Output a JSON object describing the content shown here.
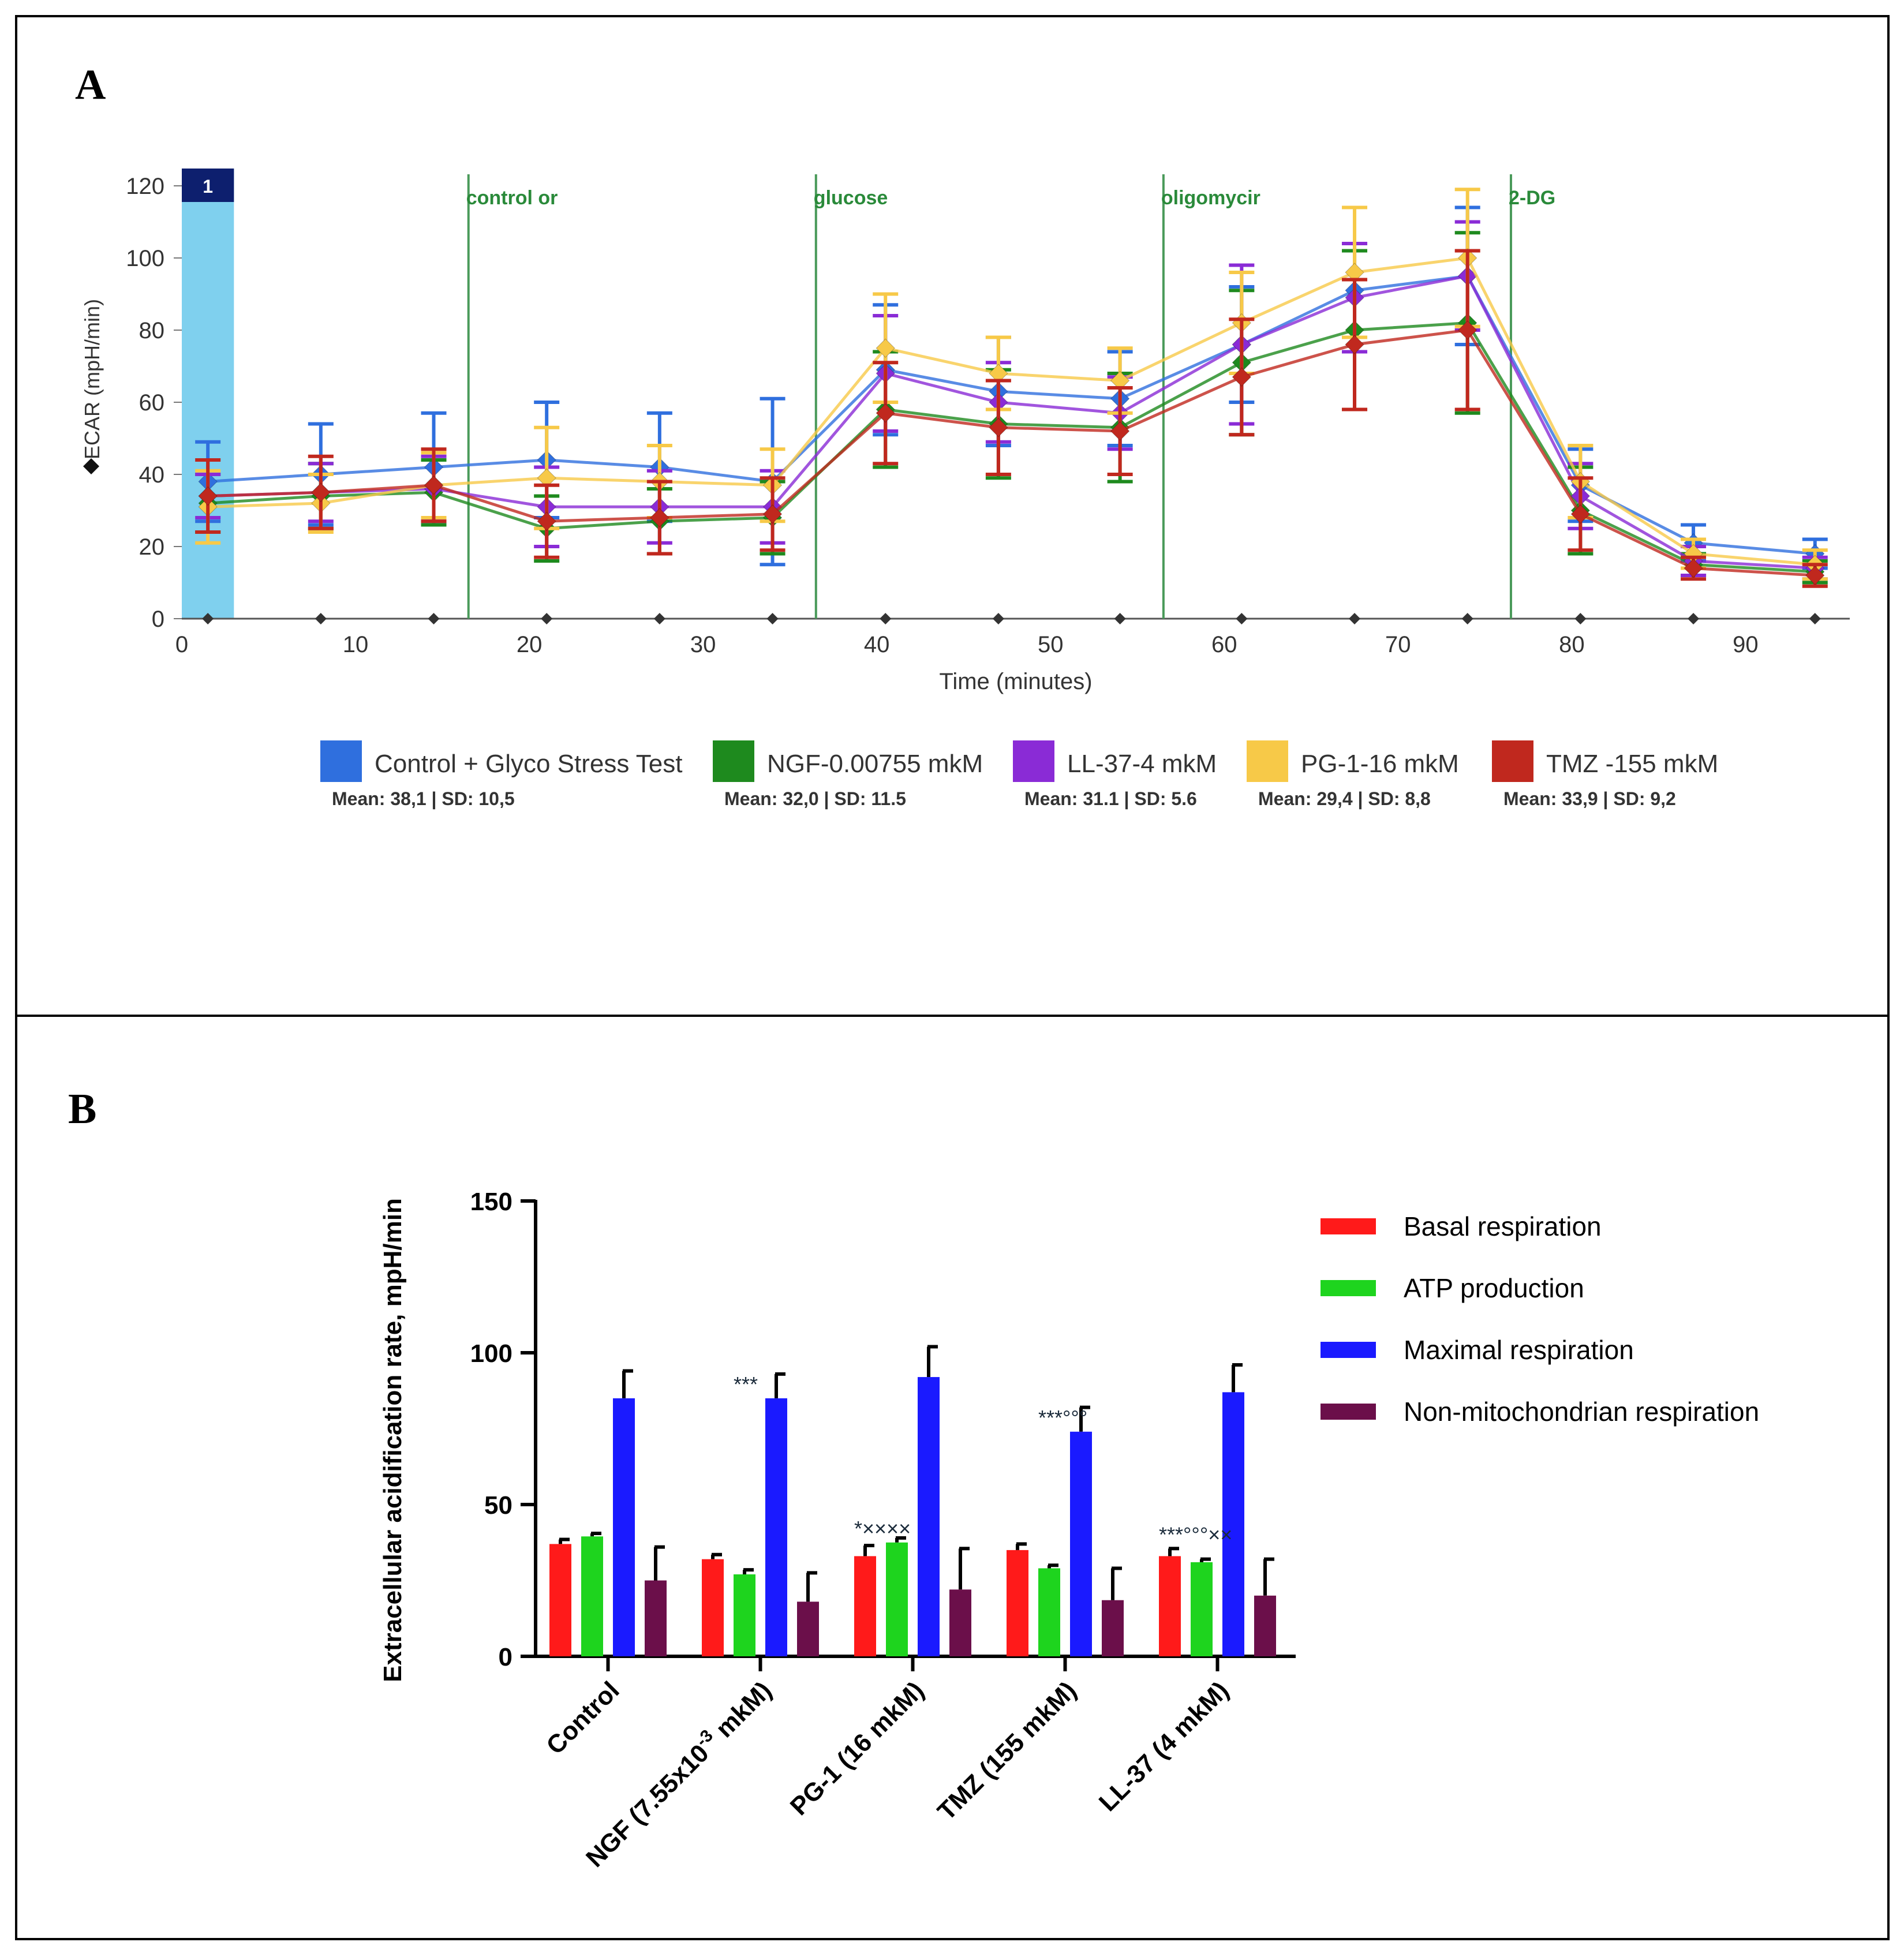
{
  "panels": {
    "a_label": "A",
    "b_label": "B"
  },
  "chart_data": [
    {
      "type": "line",
      "panel": "A",
      "ylabel": "ECAR (mpH/min)",
      "xlabel": "Time (minutes)",
      "ylim": [
        0,
        120
      ],
      "xlim": [
        0,
        96
      ],
      "yticks": [
        0,
        20,
        40,
        60,
        80,
        100,
        120
      ],
      "xticks": [
        0,
        10,
        20,
        30,
        40,
        50,
        60,
        70,
        80,
        90
      ],
      "x": [
        1.5,
        8,
        14.5,
        21,
        27.5,
        34,
        40.5,
        47,
        54,
        61,
        67.5,
        74,
        80.5,
        87,
        94
      ],
      "injection_box": {
        "label": "1",
        "x_start": 0,
        "x_end": 3
      },
      "injections": [
        {
          "x": 16.5,
          "label": "control or"
        },
        {
          "x": 36.5,
          "label": "glucose"
        },
        {
          "x": 56.5,
          "label": "oligomycir"
        },
        {
          "x": 76.5,
          "label": "2-DG"
        }
      ],
      "series": [
        {
          "name": "Control + Glyco Stress Test",
          "stats": "Mean: 38,1 | SD: 10,5",
          "color": "#2f6fde",
          "values": [
            38,
            40,
            42,
            44,
            42,
            38,
            69,
            63,
            61,
            76,
            91,
            95,
            37,
            21,
            18
          ],
          "errors": [
            11,
            14,
            15,
            16,
            15,
            23,
            18,
            15,
            13,
            16,
            13,
            19,
            10,
            5,
            4
          ]
        },
        {
          "name": "NGF-0.00755 mkM",
          "stats": "Mean: 32,0 | SD: 11.5",
          "color": "#1e8a1e",
          "values": [
            32,
            34,
            35,
            25,
            27,
            28,
            58,
            54,
            53,
            71,
            80,
            82,
            30,
            15,
            13
          ],
          "errors": [
            8,
            9,
            9,
            9,
            9,
            10,
            16,
            15,
            15,
            20,
            22,
            25,
            12,
            3,
            3
          ]
        },
        {
          "name": "LL-37-4 mkM",
          "stats": "Mean: 31.1 | SD: 5.6",
          "color": "#8a2bd6",
          "values": [
            34,
            35,
            36,
            31,
            31,
            31,
            68,
            60,
            57,
            76,
            89,
            95,
            34,
            16,
            14
          ],
          "errors": [
            6,
            8,
            9,
            11,
            10,
            10,
            16,
            11,
            10,
            22,
            15,
            15,
            9,
            4,
            3
          ]
        },
        {
          "name": "PG-1-16 mkM",
          "stats": "Mean: 29,4 | SD: 8,8",
          "color": "#f7c948",
          "values": [
            31,
            32,
            37,
            39,
            38,
            37,
            75,
            68,
            66,
            82,
            96,
            100,
            38,
            18,
            15
          ],
          "errors": [
            10,
            8,
            9,
            14,
            10,
            10,
            15,
            10,
            9,
            14,
            18,
            19,
            10,
            4,
            4
          ]
        },
        {
          "name": "TMZ -155 mkM",
          "stats": "Mean: 33,9 | SD: 9,2",
          "color": "#c0281e",
          "values": [
            34,
            35,
            37,
            27,
            28,
            29,
            57,
            53,
            52,
            67,
            76,
            80,
            29,
            14,
            12
          ],
          "errors": [
            10,
            10,
            10,
            10,
            10,
            10,
            14,
            13,
            12,
            16,
            18,
            22,
            10,
            3,
            3
          ]
        }
      ]
    },
    {
      "type": "bar",
      "panel": "B",
      "ylabel": "Extracellular acidification rate, mpH/min",
      "ylim": [
        0,
        150
      ],
      "yticks": [
        0,
        50,
        100,
        150
      ],
      "categories": [
        "Control",
        "NGF (7.55x10-3 mkM)",
        "PG-1 (16 mkM)",
        "TMZ (155 mkM)",
        "LL-37 (4 mkM)"
      ],
      "category_labels": [
        {
          "main": "Control",
          "sup": "",
          "tail": ""
        },
        {
          "main": "NGF (7.55x10",
          "sup": "-3",
          "tail": " mkM)"
        },
        {
          "main": "PG-1 (16 mkM)",
          "sup": "",
          "tail": ""
        },
        {
          "main": "TMZ (155 mkM)",
          "sup": "",
          "tail": ""
        },
        {
          "main": "LL-37 (4 mkM)",
          "sup": "",
          "tail": ""
        }
      ],
      "series": [
        {
          "name": "Basal respiration",
          "color": "#ff1a1a",
          "values": [
            37,
            32,
            33,
            35,
            33
          ],
          "errors": [
            1.5,
            1.5,
            3.5,
            2,
            2.5
          ]
        },
        {
          "name": "ATP production",
          "color": "#1ed41e",
          "values": [
            39.5,
            27,
            37.5,
            29,
            31
          ],
          "errors": [
            1,
            1.5,
            1.5,
            1,
            1
          ]
        },
        {
          "name": "Maximal respiration",
          "color": "#1a1aff",
          "values": [
            85,
            85,
            92,
            74,
            87
          ],
          "errors": [
            9,
            8,
            10,
            8,
            9
          ]
        },
        {
          "name": "Non-mitochondrian respiration",
          "color": "#6b0f4a",
          "values": [
            25,
            18,
            22,
            18.5,
            20
          ],
          "errors": [
            11,
            9.5,
            13.5,
            10.5,
            12
          ]
        }
      ],
      "annotations": [
        {
          "category": 1,
          "series": 1,
          "text": "***"
        },
        {
          "category": 2,
          "series": 0,
          "text": "*××××"
        },
        {
          "category": 3,
          "series": 1,
          "text": "***°°°"
        },
        {
          "category": 4,
          "series": 0,
          "text": "***°°°××"
        }
      ]
    }
  ]
}
